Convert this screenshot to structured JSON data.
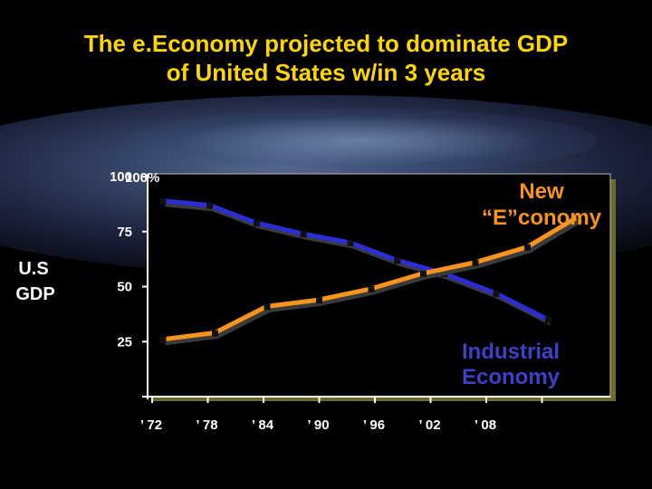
{
  "title": {
    "line1": "The e.Economy projected to dominate GDP",
    "line2": "of United States w/in 3 years"
  },
  "y_axis_label": {
    "line1": "U.S",
    "line2": "GDP"
  },
  "y_top_label": "100%",
  "annotations": {
    "new_line1": "New",
    "new_line2": "“E”conomy",
    "industrial_line1": "Industrial",
    "industrial_line2": "Economy"
  },
  "colors": {
    "title": "#ffd700",
    "plot_bg": "#000000",
    "industrial": "#2b2ed6",
    "new_economy": "#f7941d"
  },
  "chart_data": {
    "type": "line",
    "x": [
      "’ 72",
      "’ 78",
      "’ 84",
      "’ 90",
      "’ 96",
      "’ 02",
      "’ 08"
    ],
    "y_ticks": [
      "100",
      "75",
      "50",
      "25"
    ],
    "y_tick_values": [
      100,
      75,
      50,
      25
    ],
    "ylim": [
      0,
      100
    ],
    "x_range": [
      1970,
      2014
    ],
    "xlabel": "",
    "ylabel": "U.S GDP",
    "grid": false,
    "series": [
      {
        "key": "industrial",
        "name": "Industrial Economy",
        "x": [
          1971,
          1975.5,
          1980,
          1984.5,
          1989,
          1993.5,
          1998,
          2003,
          2008
        ],
        "y": [
          89,
          87,
          79,
          74,
          70,
          62,
          56,
          47,
          35
        ]
      },
      {
        "key": "new_economy",
        "name": "New “E”conomy",
        "x": [
          1971,
          1976,
          1981,
          1986,
          1991,
          1996,
          2001,
          2006,
          2011
        ],
        "y": [
          26,
          29,
          41,
          44,
          49,
          56,
          61,
          68,
          82
        ]
      }
    ]
  }
}
